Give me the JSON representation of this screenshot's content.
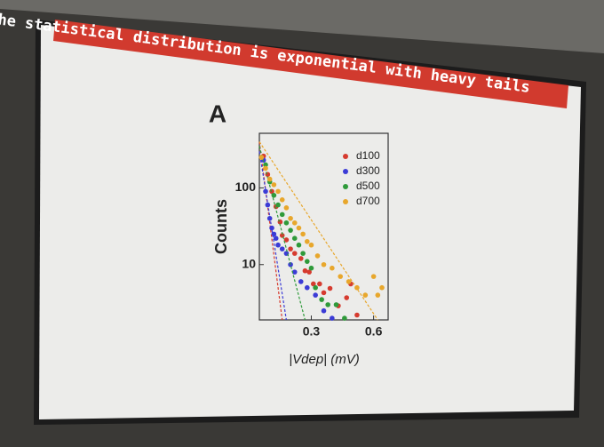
{
  "slide": {
    "title": "The statistical distribution is exponential with heavy tails",
    "panel_label": "A"
  },
  "chart_data": {
    "type": "scatter",
    "ylabel": "Counts",
    "xlabel": "|Vdep| (mV)",
    "xlim": [
      0.05,
      0.67
    ],
    "ylim": [
      1.9,
      515
    ],
    "xticks": [
      0.3,
      0.6
    ],
    "yticks": [
      10,
      100
    ],
    "log_y": true,
    "grid": false,
    "legend": "upper right",
    "series": [
      {
        "name": "d100",
        "color": "#d63b2f",
        "x": [
          0.07,
          0.09,
          0.11,
          0.13,
          0.15,
          0.16,
          0.18,
          0.2,
          0.22,
          0.25,
          0.27,
          0.29,
          0.31,
          0.34,
          0.36,
          0.39,
          0.43,
          0.47,
          0.49,
          0.52
        ],
        "values": [
          260,
          150,
          90,
          57,
          36,
          24,
          21,
          16,
          14,
          12,
          8.3,
          8,
          5.6,
          5.6,
          4.3,
          4.9,
          2.9,
          3.7,
          5.6,
          2.2
        ],
        "fit_x": [
          0.05,
          0.16
        ],
        "fit_y": [
          400,
          1.9
        ]
      },
      {
        "name": "d300",
        "color": "#3b3bd6",
        "x": [
          0.07,
          0.08,
          0.09,
          0.1,
          0.11,
          0.12,
          0.13,
          0.14,
          0.16,
          0.18,
          0.2,
          0.22,
          0.25,
          0.28,
          0.32,
          0.36,
          0.4
        ],
        "values": [
          230,
          90,
          60,
          40,
          30,
          25,
          22,
          18,
          16,
          14,
          10,
          8,
          6,
          5,
          4,
          2.5,
          2
        ],
        "fit_x": [
          0.05,
          0.18
        ],
        "fit_y": [
          300,
          1.9
        ]
      },
      {
        "name": "d500",
        "color": "#2f9a3a",
        "x": [
          0.08,
          0.1,
          0.12,
          0.14,
          0.16,
          0.18,
          0.2,
          0.22,
          0.24,
          0.26,
          0.28,
          0.3,
          0.32,
          0.35,
          0.38,
          0.42,
          0.46
        ],
        "values": [
          200,
          120,
          80,
          60,
          45,
          35,
          28,
          22,
          18,
          14,
          11,
          9,
          5,
          3.5,
          3,
          3,
          2
        ],
        "fit_x": [
          0.05,
          0.27
        ],
        "fit_y": [
          350,
          1.9
        ]
      },
      {
        "name": "d700",
        "color": "#e8a72c",
        "x": [
          0.06,
          0.08,
          0.1,
          0.12,
          0.14,
          0.16,
          0.18,
          0.2,
          0.22,
          0.24,
          0.26,
          0.28,
          0.3,
          0.33,
          0.36,
          0.4,
          0.44,
          0.48,
          0.52,
          0.56,
          0.6,
          0.62,
          0.64
        ],
        "values": [
          250,
          180,
          130,
          110,
          90,
          70,
          55,
          40,
          35,
          30,
          25,
          20,
          18,
          13,
          10,
          9,
          7,
          6,
          5,
          4,
          7,
          4,
          5
        ],
        "fit_x": [
          0.05,
          0.62
        ],
        "fit_y": [
          400,
          1.9
        ]
      }
    ]
  }
}
